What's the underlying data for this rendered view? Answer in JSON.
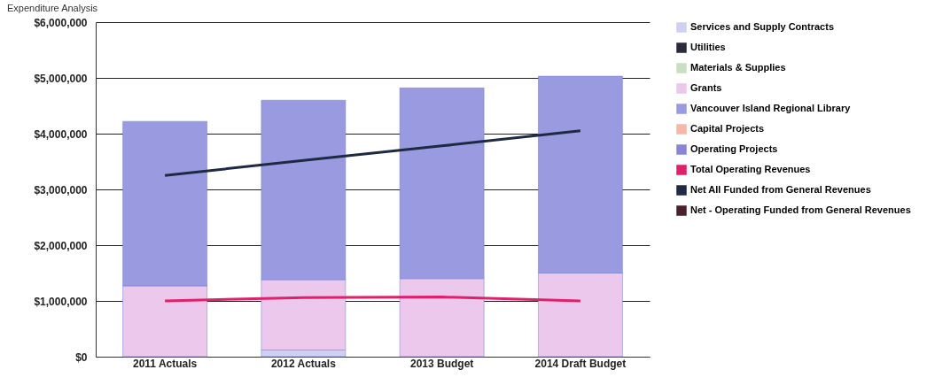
{
  "chart_data": {
    "type": "bar",
    "title": "Expenditure Analysis",
    "stacked": true,
    "categories": [
      "2011 Actuals",
      "2012  Actuals",
      "2013 Budget",
      "2014 Draft Budget"
    ],
    "ylim": [
      0,
      6000000
    ],
    "yticks": [
      {
        "value": 0,
        "label": "$0"
      },
      {
        "value": 1000000,
        "label": "$1,000,000"
      },
      {
        "value": 2000000,
        "label": "$2,000,000"
      },
      {
        "value": 3000000,
        "label": "$3,000,000"
      },
      {
        "value": 4000000,
        "label": "$4,000,000"
      },
      {
        "value": 5000000,
        "label": "$5,000,000"
      },
      {
        "value": 6000000,
        "label": "$6,000,000"
      }
    ],
    "grid": "y",
    "legend": "right",
    "series": [
      {
        "name": "Services and Supply Contracts",
        "color": "#d0d0f4",
        "values": [
          null,
          120000,
          null,
          null
        ]
      },
      {
        "name": "Utilities",
        "color": "#2a2a3a",
        "values": [
          null,
          null,
          null,
          null
        ]
      },
      {
        "name": "Materials & Supplies",
        "color": "#c8e0c0",
        "values": [
          null,
          null,
          null,
          null
        ]
      },
      {
        "name": "Grants",
        "color": "#ecc8ec",
        "values": [
          1270000,
          1260000,
          1400000,
          1500000
        ]
      },
      {
        "name": "Vancouver Island Regional Library",
        "color": "#9a9ae0",
        "values": [
          2950000,
          3220000,
          3420000,
          3530000
        ]
      },
      {
        "name": "Capital Projects",
        "color": "#f4b8a8",
        "values": [
          null,
          null,
          null,
          null
        ]
      },
      {
        "name": "Operating Projects",
        "color": "#8a84d8",
        "values": [
          null,
          null,
          null,
          null
        ]
      },
      {
        "name": "Total Operating Revenues",
        "type": "line",
        "color": "#e0206a",
        "values": [
          1000000,
          1060000,
          1070000,
          1000000
        ]
      },
      {
        "name": "Net All Funded from General Revenues",
        "type": "line",
        "color": "#1e2a44",
        "values": [
          3250000,
          3520000,
          3780000,
          4050000
        ]
      },
      {
        "name": "Net - Operating Funded from General Revenues",
        "type": "line",
        "color": "#4a2030",
        "values": [
          null,
          null,
          null,
          null
        ]
      }
    ]
  }
}
